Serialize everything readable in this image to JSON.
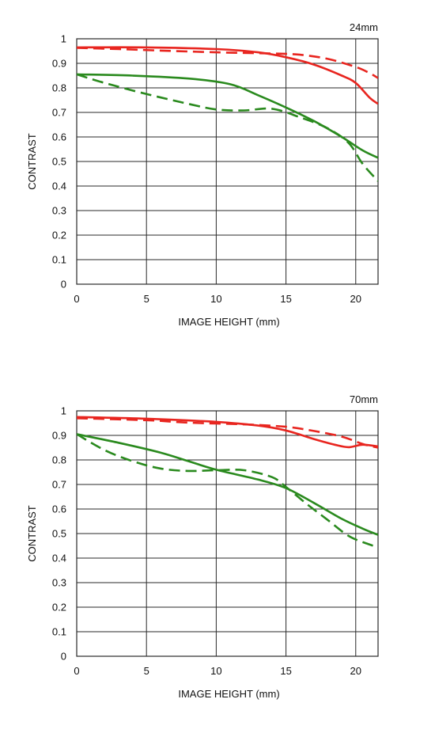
{
  "colors": {
    "red": "#e8251f",
    "green": "#2a8a1e",
    "grid": "#2a2a2a"
  },
  "chart_data": [
    {
      "type": "line",
      "title": "24mm",
      "xlabel": "IMAGE HEIGHT (mm)",
      "ylabel": "CONTRAST",
      "xlim": [
        0,
        21.6
      ],
      "ylim": [
        0,
        1
      ],
      "x_ticks": [
        0,
        5,
        10,
        15,
        20
      ],
      "x_tick_labels": [
        "0",
        "5",
        "10",
        "15",
        "20"
      ],
      "y_ticks": [
        0,
        0.1,
        0.2,
        0.3,
        0.4,
        0.5,
        0.6,
        0.7,
        0.8,
        0.9,
        1
      ],
      "y_tick_labels": [
        "0",
        "0.1",
        "0.2",
        "0.3",
        "0.4",
        "0.5",
        "0.6",
        "0.7",
        "0.8",
        "0.9",
        "1"
      ],
      "grid": true,
      "series": [
        {
          "color": "red",
          "style": "solid",
          "points": [
            [
              0,
              0.965
            ],
            [
              5,
              0.965
            ],
            [
              10,
              0.958
            ],
            [
              13,
              0.945
            ],
            [
              15,
              0.925
            ],
            [
              17,
              0.895
            ],
            [
              19,
              0.85
            ],
            [
              20,
              0.82
            ],
            [
              21,
              0.76
            ],
            [
              21.6,
              0.735
            ]
          ]
        },
        {
          "color": "red",
          "style": "dashed",
          "points": [
            [
              0,
              0.963
            ],
            [
              3,
              0.958
            ],
            [
              6,
              0.952
            ],
            [
              10,
              0.945
            ],
            [
              14,
              0.94
            ],
            [
              16,
              0.935
            ],
            [
              18,
              0.918
            ],
            [
              20,
              0.885
            ],
            [
              21,
              0.86
            ],
            [
              21.6,
              0.84
            ]
          ]
        },
        {
          "color": "green",
          "style": "solid",
          "points": [
            [
              0,
              0.855
            ],
            [
              4,
              0.85
            ],
            [
              8,
              0.838
            ],
            [
              11,
              0.815
            ],
            [
              13,
              0.77
            ],
            [
              15,
              0.72
            ],
            [
              17,
              0.665
            ],
            [
              19,
              0.6
            ],
            [
              20.5,
              0.545
            ],
            [
              21.6,
              0.515
            ]
          ]
        },
        {
          "color": "green",
          "style": "dashed",
          "points": [
            [
              0,
              0.855
            ],
            [
              2,
              0.82
            ],
            [
              5,
              0.775
            ],
            [
              8,
              0.735
            ],
            [
              10,
              0.712
            ],
            [
              12,
              0.708
            ],
            [
              14,
              0.715
            ],
            [
              16,
              0.68
            ],
            [
              18,
              0.635
            ],
            [
              19.5,
              0.575
            ],
            [
              20.5,
              0.49
            ],
            [
              21.6,
              0.42
            ]
          ]
        }
      ]
    },
    {
      "type": "line",
      "title": "70mm",
      "xlabel": "IMAGE HEIGHT (mm)",
      "ylabel": "CONTRAST",
      "xlim": [
        0,
        21.6
      ],
      "ylim": [
        0,
        1
      ],
      "x_ticks": [
        0,
        5,
        10,
        15,
        20
      ],
      "x_tick_labels": [
        "0",
        "5",
        "10",
        "15",
        "20"
      ],
      "y_ticks": [
        0,
        0.1,
        0.2,
        0.3,
        0.4,
        0.5,
        0.6,
        0.7,
        0.8,
        0.9,
        1
      ],
      "y_tick_labels": [
        "0",
        "0.1",
        "0.2",
        "0.3",
        "0.4",
        "0.5",
        "0.6",
        "0.7",
        "0.8",
        "0.9",
        "1"
      ],
      "grid": true,
      "series": [
        {
          "color": "red",
          "style": "solid",
          "points": [
            [
              0,
              0.975
            ],
            [
              5,
              0.968
            ],
            [
              10,
              0.955
            ],
            [
              13,
              0.94
            ],
            [
              15,
              0.92
            ],
            [
              17,
              0.885
            ],
            [
              18.5,
              0.862
            ],
            [
              19.5,
              0.852
            ],
            [
              20.5,
              0.862
            ],
            [
              21.6,
              0.855
            ]
          ]
        },
        {
          "color": "red",
          "style": "dashed",
          "points": [
            [
              0,
              0.97
            ],
            [
              5,
              0.962
            ],
            [
              8,
              0.952
            ],
            [
              12,
              0.945
            ],
            [
              15,
              0.935
            ],
            [
              17,
              0.918
            ],
            [
              19,
              0.895
            ],
            [
              20.5,
              0.865
            ],
            [
              21.6,
              0.85
            ]
          ]
        },
        {
          "color": "green",
          "style": "solid",
          "points": [
            [
              0,
              0.905
            ],
            [
              3,
              0.87
            ],
            [
              6,
              0.83
            ],
            [
              8,
              0.795
            ],
            [
              10,
              0.76
            ],
            [
              13,
              0.72
            ],
            [
              15,
              0.685
            ],
            [
              17,
              0.625
            ],
            [
              19,
              0.56
            ],
            [
              20.5,
              0.52
            ],
            [
              21.6,
              0.495
            ]
          ]
        },
        {
          "color": "green",
          "style": "dashed",
          "points": [
            [
              0,
              0.905
            ],
            [
              2,
              0.84
            ],
            [
              4,
              0.795
            ],
            [
              6,
              0.765
            ],
            [
              8,
              0.755
            ],
            [
              10,
              0.758
            ],
            [
              12,
              0.758
            ],
            [
              14,
              0.73
            ],
            [
              15,
              0.69
            ],
            [
              16.5,
              0.62
            ],
            [
              18,
              0.555
            ],
            [
              19.5,
              0.49
            ],
            [
              21,
              0.455
            ],
            [
              21.6,
              0.445
            ]
          ]
        }
      ]
    }
  ]
}
